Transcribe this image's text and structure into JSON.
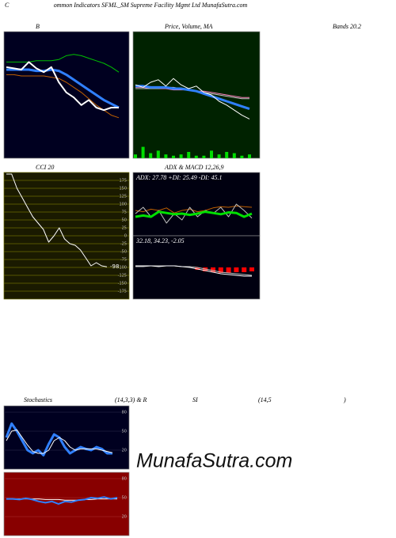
{
  "header": {
    "initial": "C",
    "title": "ommon Indicators SFML_SM Supreme Facility Mgmt Ltd MunafaSutra.com"
  },
  "watermark": "MunafaSutra.com",
  "stoch_row": [
    "(14,3,3) & R",
    "SI",
    "(14,5",
    ")"
  ],
  "chart_data": [
    {
      "type": "line",
      "title": "B",
      "subtitle": "Bands 20.2",
      "ylim": [
        0,
        100
      ],
      "background": "#000020",
      "series": [
        {
          "color": "#00c000",
          "width": 1,
          "values": [
            76,
            76,
            76,
            76,
            77,
            77,
            77,
            78,
            81,
            82,
            81,
            79,
            77,
            75,
            72,
            68
          ]
        },
        {
          "color": "#c06000",
          "width": 1,
          "values": [
            66,
            66,
            65,
            65,
            65,
            65,
            64,
            63,
            60,
            56,
            52,
            47,
            42,
            38,
            34,
            32
          ]
        },
        {
          "color": "#3080ff",
          "width": 3,
          "values": [
            70,
            70,
            70,
            70,
            69,
            69,
            70,
            69,
            66,
            62,
            58,
            54,
            50,
            46,
            43,
            40
          ]
        },
        {
          "color": "#ffffff",
          "width": 2,
          "values": [
            72,
            71,
            70,
            76,
            71,
            68,
            72,
            60,
            52,
            48,
            42,
            46,
            40,
            38,
            40,
            40
          ]
        }
      ]
    },
    {
      "type": "line",
      "title": "Price, Volume, MA",
      "ylim": [
        0,
        100
      ],
      "background": "#002200",
      "volume": {
        "color": "#00dd00",
        "values": [
          3,
          9,
          4,
          6,
          3,
          2,
          3,
          5,
          2,
          2,
          6,
          3,
          5,
          4,
          2,
          3
        ]
      },
      "series": [
        {
          "color": "#ff80c0",
          "width": 1,
          "values": [
            56,
            56,
            55,
            55,
            55,
            54,
            54,
            54,
            53,
            53,
            52,
            51,
            50,
            49,
            48,
            48
          ]
        },
        {
          "color": "#c0c0c0",
          "width": 1,
          "values": [
            55,
            55,
            55,
            55,
            56,
            56,
            55,
            54,
            53,
            52,
            51,
            50,
            49,
            48,
            47,
            47
          ]
        },
        {
          "color": "#3080ff",
          "width": 3,
          "values": [
            57,
            57,
            56,
            56,
            56,
            55,
            55,
            54,
            53,
            51,
            49,
            47,
            45,
            43,
            41,
            39
          ]
        },
        {
          "color": "#ffffff",
          "width": 1,
          "values": [
            58,
            56,
            60,
            62,
            57,
            63,
            58,
            55,
            57,
            52,
            50,
            45,
            42,
            38,
            34,
            31
          ]
        }
      ]
    },
    {
      "type": "line",
      "title": "CCI 20",
      "ylim": [
        -200,
        200
      ],
      "background": "#1a1a00",
      "grid": true,
      "grid_color": "#6b6b00",
      "label_last": true,
      "yticks": [
        175,
        150,
        125,
        100,
        75,
        50,
        25,
        0,
        -25,
        -50,
        -75,
        -100,
        -125,
        -150,
        -175
      ],
      "series": [
        {
          "color": "#ffffff",
          "width": 1,
          "values": [
            195,
            195,
            150,
            120,
            90,
            60,
            40,
            20,
            -20,
            0,
            25,
            -10,
            -25,
            -30,
            -45,
            -70,
            -95,
            -85,
            -95,
            -98
          ]
        }
      ]
    },
    {
      "type": "line",
      "title": "ADX  & MACD 12,26,9",
      "text": "ADX: 27.78  +DI: 25.49  -DI: 45.1",
      "ylim": [
        0,
        100
      ],
      "background": "#000010",
      "series": [
        {
          "color": "#c06000",
          "width": 1,
          "values": [
            40,
            38,
            42,
            40,
            44,
            36,
            40,
            42,
            38,
            40,
            44,
            46,
            45,
            47,
            46,
            45
          ]
        },
        {
          "color": "#c0c0c0",
          "width": 1,
          "values": [
            35,
            45,
            30,
            40,
            20,
            35,
            25,
            45,
            30,
            40,
            35,
            45,
            30,
            50,
            40,
            28
          ]
        },
        {
          "color": "#00e000",
          "width": 3,
          "values": [
            30,
            32,
            30,
            38,
            36,
            34,
            35,
            33,
            35,
            38,
            36,
            34,
            37,
            36,
            30,
            35
          ]
        }
      ]
    },
    {
      "type": "line",
      "text": "32.18, 34.23, -2.05",
      "ylim": [
        -40,
        40
      ],
      "background": "#000010",
      "histogram": {
        "color": "#ff0000",
        "values": [
          0,
          0,
          0,
          0,
          0,
          0,
          0,
          0,
          -3,
          -5,
          -6,
          -7,
          -7,
          -6,
          -6,
          -5
        ]
      },
      "series": [
        {
          "color": "#c0c0c0",
          "width": 1,
          "values": [
            1,
            1,
            2,
            2,
            2,
            2,
            1,
            1,
            0,
            -2,
            -4,
            -6,
            -7,
            -8,
            -9,
            -10
          ]
        },
        {
          "color": "#ffffff",
          "width": 1,
          "values": [
            2,
            2,
            2,
            1,
            2,
            2,
            1,
            0,
            -2,
            -4,
            -6,
            -8,
            -9,
            -10,
            -11,
            -11
          ]
        }
      ]
    },
    {
      "type": "line",
      "title": "Stochastics",
      "ylim": [
        -10,
        90
      ],
      "yticks": [
        80,
        50,
        20
      ],
      "grid": true,
      "grid_color": "#202040",
      "background": "#000020",
      "series": [
        {
          "color": "#3080ff",
          "width": 3,
          "values": [
            40,
            62,
            50,
            35,
            20,
            15,
            20,
            12,
            30,
            45,
            40,
            25,
            15,
            20,
            25,
            22,
            20,
            25,
            22,
            15,
            15
          ]
        },
        {
          "color": "#ffffff",
          "width": 1,
          "values": [
            35,
            50,
            52,
            40,
            28,
            18,
            15,
            15,
            20,
            35,
            40,
            35,
            25,
            20,
            22,
            22,
            22,
            22,
            20,
            18,
            16
          ]
        }
      ]
    },
    {
      "type": "line",
      "ylim": [
        -10,
        90
      ],
      "yticks": [
        80,
        50,
        20
      ],
      "grid": true,
      "grid_color": "#a02020",
      "background": "#880000",
      "series": [
        {
          "color": "#ffffff",
          "width": 1,
          "values": [
            48,
            48,
            48,
            48,
            48,
            48,
            47,
            47,
            47,
            46,
            46,
            46,
            47,
            47,
            48,
            48,
            48,
            48
          ]
        },
        {
          "color": "#3080ff",
          "width": 2,
          "values": [
            48,
            48,
            47,
            49,
            47,
            44,
            42,
            44,
            40,
            44,
            43,
            46,
            47,
            50,
            49,
            51,
            48,
            50
          ]
        }
      ]
    }
  ]
}
